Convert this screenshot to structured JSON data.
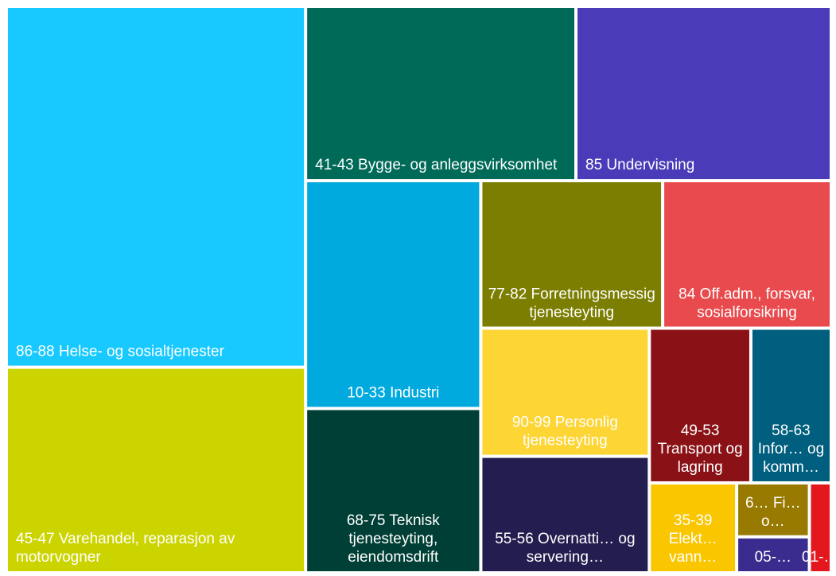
{
  "chart_data": {
    "type": "treemap",
    "categories": [
      "86-88 Helse- og sosialtjenester",
      "45-47 Varehandel, reparasjon av motorvogner",
      "41-43 Bygge- og anleggsvirksomhet",
      "85 Undervisning",
      "10-33 Industri",
      "68-75 Teknisk tjenesteyting, eiendomsdrift",
      "77-82 Forretningsmessig tjenesteyting",
      "84 Off.adm., forsvar, sosialforsikring",
      "90-99 Personlig tjenesteyting",
      "55-56 Overnatti… og servering…",
      "49-53 Transport og lagring",
      "58-63 Infor… og komm…",
      "35-39 Elekt… vann…",
      "6… Fi… o…",
      "05-…",
      "01-…"
    ],
    "values": [
      165,
      94,
      72,
      68,
      61,
      44,
      41,
      38,
      33,
      30,
      24,
      19,
      12,
      6,
      4,
      3
    ],
    "colors": [
      "#17c9ff",
      "#ccd400",
      "#006a58",
      "#4a3cb8",
      "#00a9de",
      "#003f35",
      "#7b7e00",
      "#e84a4d",
      "#fdd535",
      "#241d4f",
      "#8a1216",
      "#005e7e",
      "#f9c600",
      "#987a00",
      "#3a2b8e",
      "#e4171f"
    ]
  }
}
